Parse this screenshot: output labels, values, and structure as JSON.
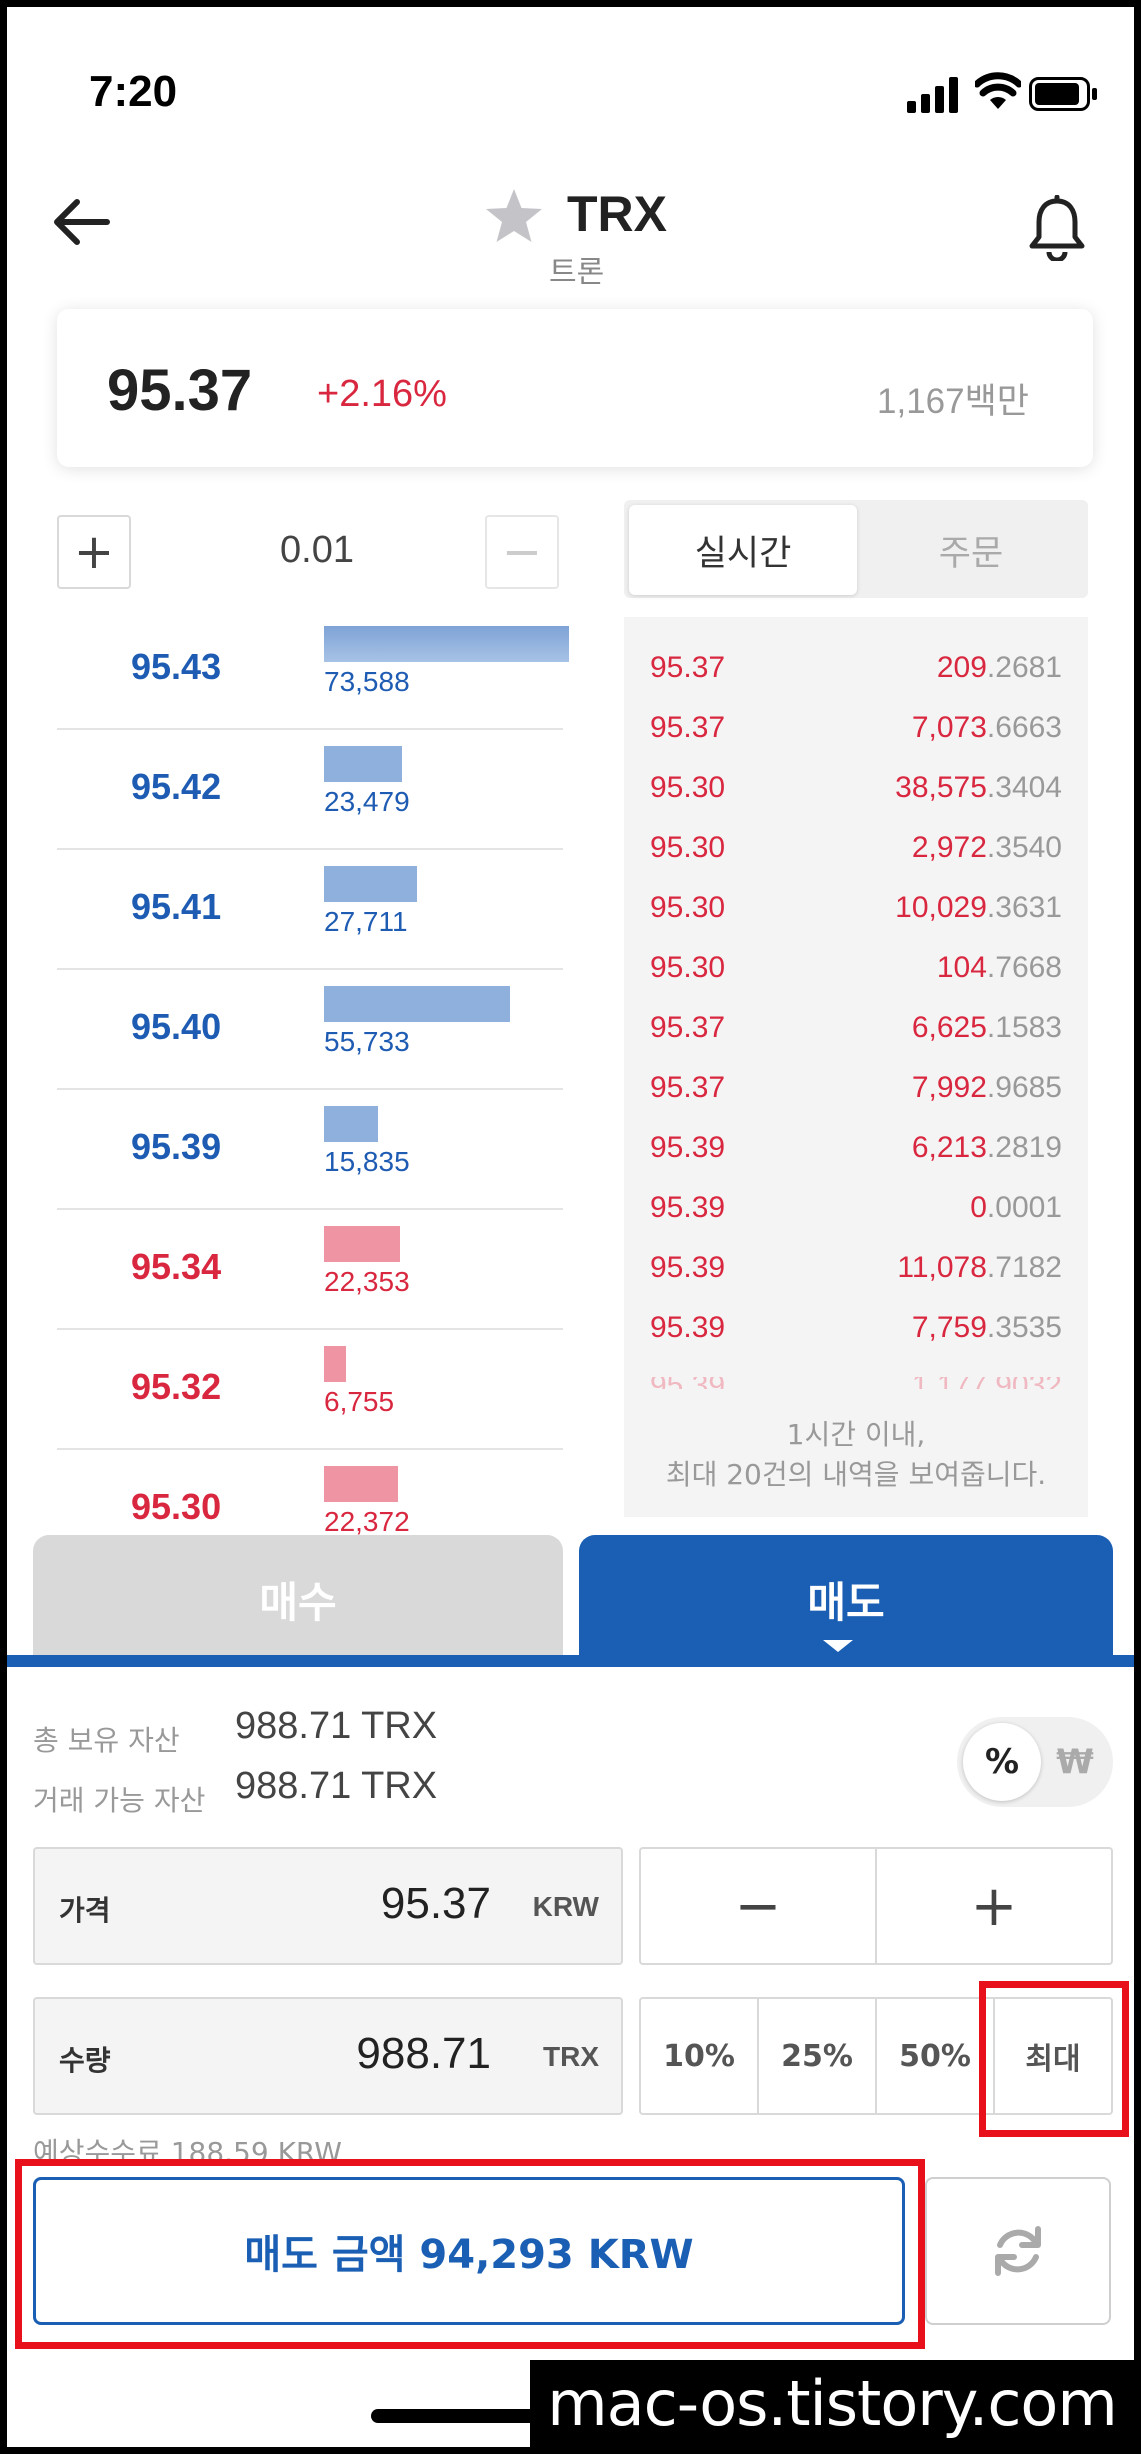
{
  "status_bar": {
    "time": "7:20"
  },
  "header": {
    "coin": "TRX",
    "coin_korean": "트론"
  },
  "price_card": {
    "price": "95.37",
    "change": "+2.16%",
    "volume": "1,167백만"
  },
  "tick": {
    "plus": "+",
    "value": "0.01",
    "minus": "−"
  },
  "orderbook": {
    "rows": [
      {
        "price": "95.43",
        "qty": "73,588",
        "side": "sell",
        "fill": 1.0
      },
      {
        "price": "95.42",
        "qty": "23,479",
        "side": "sell",
        "fill": 0.32
      },
      {
        "price": "95.41",
        "qty": "27,711",
        "side": "sell",
        "fill": 0.38
      },
      {
        "price": "95.40",
        "qty": "55,733",
        "side": "sell",
        "fill": 0.76
      },
      {
        "price": "95.39",
        "qty": "15,835",
        "side": "sell",
        "fill": 0.22
      },
      {
        "price": "95.34",
        "qty": "22,353",
        "side": "buy",
        "fill": 0.31
      },
      {
        "price": "95.32",
        "qty": "6,755",
        "side": "buy",
        "fill": 0.09
      },
      {
        "price": "95.30",
        "qty": "22,372",
        "side": "buy",
        "fill": 0.3
      }
    ]
  },
  "tabs": {
    "realtime": "실시간",
    "orders": "주문"
  },
  "trades": [
    {
      "price": "95.37",
      "qty_int": "209",
      "qty_dec": ".2681"
    },
    {
      "price": "95.37",
      "qty_int": "7,073",
      "qty_dec": ".6663"
    },
    {
      "price": "95.30",
      "qty_int": "38,575",
      "qty_dec": ".3404"
    },
    {
      "price": "95.30",
      "qty_int": "2,972",
      "qty_dec": ".3540"
    },
    {
      "price": "95.30",
      "qty_int": "10,029",
      "qty_dec": ".3631"
    },
    {
      "price": "95.30",
      "qty_int": "104",
      "qty_dec": ".7668"
    },
    {
      "price": "95.37",
      "qty_int": "6,625",
      "qty_dec": ".1583"
    },
    {
      "price": "95.37",
      "qty_int": "7,992",
      "qty_dec": ".9685"
    },
    {
      "price": "95.39",
      "qty_int": "6,213",
      "qty_dec": ".2819"
    },
    {
      "price": "95.39",
      "qty_int": "0",
      "qty_dec": ".0001"
    },
    {
      "price": "95.39",
      "qty_int": "11,078",
      "qty_dec": ".7182"
    },
    {
      "price": "95.39",
      "qty_int": "7,759",
      "qty_dec": ".3535"
    }
  ],
  "trade_note": {
    "line1": "1시간 이내,",
    "line2": "최대 20건의 내역을 보여줍니다."
  },
  "side_tabs": {
    "buy": "매수",
    "sell": "매도"
  },
  "holdings": {
    "total_label": "총 보유 자산",
    "total_value": "988.71 TRX",
    "available_label": "거래 가능 자산",
    "available_value": "988.71 TRX"
  },
  "unit_toggle": {
    "percent": "%",
    "won": "₩"
  },
  "price_field": {
    "label": "가격",
    "value": "95.37",
    "unit": "KRW"
  },
  "qty_field": {
    "label": "수량",
    "value": "988.71",
    "unit": "TRX"
  },
  "step_buttons": {
    "minus": "−",
    "plus": "+"
  },
  "ratio_buttons": [
    "10%",
    "25%",
    "50%",
    "최대"
  ],
  "fee_text": "예상수수료 188.59 KRW",
  "sell_button": "매도 금액 94,293 KRW",
  "watermark": "mac-os.tistory.com",
  "colors": {
    "sell_blue": "#1e5bb3",
    "buy_red": "#d8273f",
    "accent": "#1a5fb4",
    "highlight": "#e8101a"
  }
}
